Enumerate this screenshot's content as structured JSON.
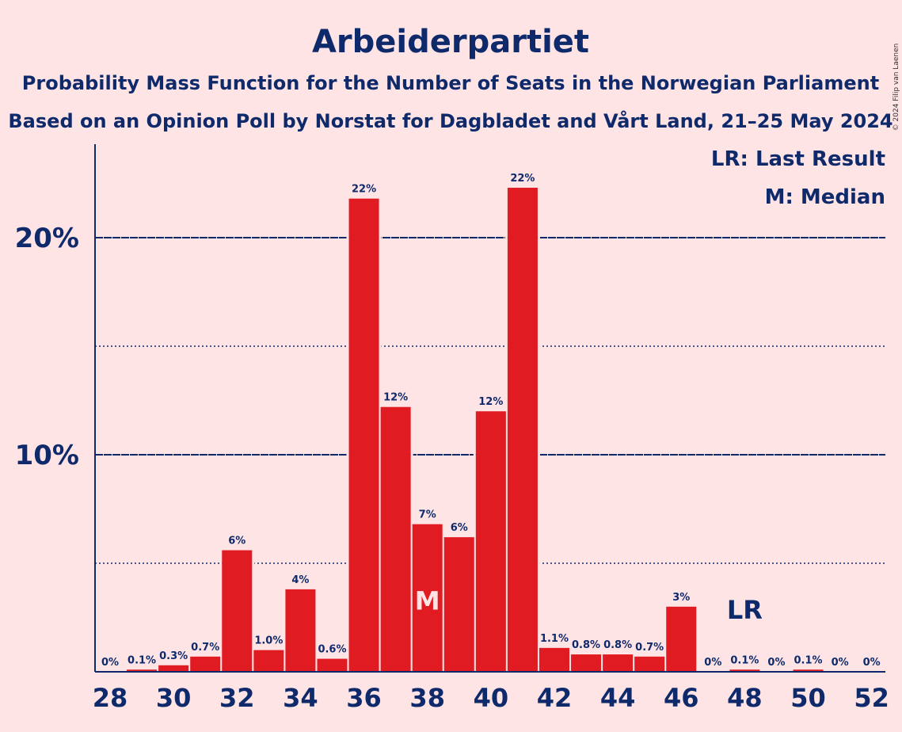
{
  "chart_data": {
    "type": "bar",
    "title": "Arbeiderpartiet",
    "subtitle_1": "Probability Mass Function for the Number of Seats in the Norwegian Parliament",
    "subtitle_2": "Based on an Opinion Poll by Norstat for Dagbladet and Vårt Land, 21–25 May 2024",
    "copyright": "© 2024 Filip van Laenen",
    "legend": {
      "last_result": "LR: Last Result",
      "median": "M: Median",
      "placement": "top-right"
    },
    "x": [
      28,
      29,
      30,
      31,
      32,
      33,
      34,
      35,
      36,
      37,
      38,
      39,
      40,
      41,
      42,
      43,
      44,
      45,
      46,
      47,
      48,
      49,
      50,
      51,
      52
    ],
    "values": [
      0,
      0.1,
      0.3,
      0.7,
      5.6,
      1.0,
      3.8,
      0.6,
      21.8,
      12.2,
      6.8,
      6.2,
      12.0,
      22.3,
      1.1,
      0.8,
      0.8,
      0.7,
      3.0,
      0,
      0.1,
      0,
      0.1,
      0,
      0
    ],
    "data_labels": [
      "0%",
      "0.1%",
      "0.3%",
      "0.7%",
      "6%",
      "1.0%",
      "4%",
      "0.6%",
      "22%",
      "12%",
      "7%",
      "6%",
      "12%",
      "22%",
      "1.1%",
      "0.8%",
      "0.8%",
      "0.7%",
      "3%",
      "0%",
      "0.1%",
      "0%",
      "0.1%",
      "0%",
      "0%"
    ],
    "x_tick_labels": [
      "28",
      "30",
      "32",
      "34",
      "36",
      "38",
      "40",
      "42",
      "44",
      "46",
      "48",
      "50",
      "52"
    ],
    "y_ticks": [
      10,
      20
    ],
    "y_tick_labels": [
      "10%",
      "20%"
    ],
    "y_minor_ticks": [
      5,
      15
    ],
    "ylim": [
      0,
      24.3
    ],
    "median_seat": 38,
    "median_marker": "M",
    "last_result_seat": 48,
    "last_result_marker": "LR",
    "grid": true,
    "colors": {
      "bar": "#E01B22",
      "axis": "#0E2A6B",
      "background": "#FFE4E6",
      "median_text": "#FFE4E6"
    }
  }
}
